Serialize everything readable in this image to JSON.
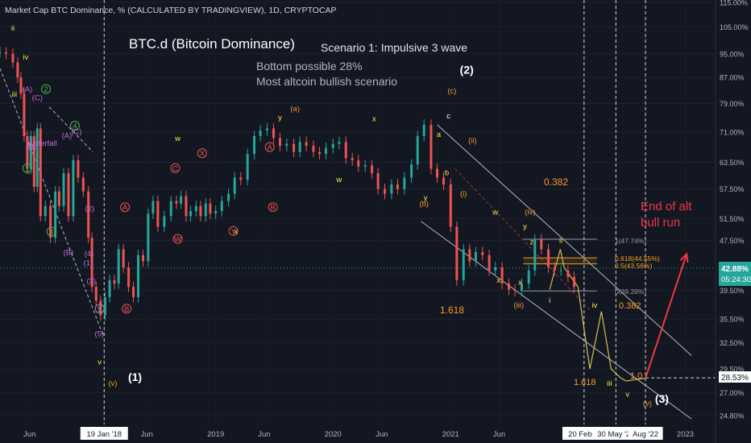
{
  "header": {
    "symbol": "Market Cap BTC Dominance, % (CALCULATED BY TRADINGVIEW), 1D, CRYPTOCAP"
  },
  "annotations": {
    "title": "BTC.d (Bitcoin Dominance)",
    "scenario": "Scenario 1: Impulsive 3 wave",
    "bottom_note": "Bottom possible 28%",
    "bullish_note": "Most altcoin bullish scenario",
    "end_note_1": "End of alt",
    "end_note_2": "bull run",
    "fib_0382_top": "0.382",
    "fib_1618_a": "1.618",
    "fib_1618_b": "1.618",
    "fib_0382_bottom": "0.382",
    "fib_10": "1.0"
  },
  "fib_levels": {
    "l1": "1(47.74%)",
    "l0618": "0.618(44.55%)",
    "l05": "0.5(43.56%)",
    "l0": "0(39.39%)"
  },
  "wave_labels": [
    {
      "t": "ii",
      "x": "2017-04-10",
      "y": 103.5,
      "c": "yellow"
    },
    {
      "t": "iv",
      "x": "2017-05-20",
      "y": 93.0,
      "c": "yellow"
    },
    {
      "t": "iii",
      "x": "2017-04-15",
      "y": 81.0,
      "c": "yellow"
    },
    {
      "t": "(A)",
      "x": "2017-05-25",
      "y": 82.5,
      "c": "purple"
    },
    {
      "t": "(C)",
      "x": "2017-06-25",
      "y": 80.0,
      "c": "purple"
    },
    {
      "t": "2",
      "x": "2017-07-22",
      "y": 82.5,
      "c": "green",
      "circle": true
    },
    {
      "t": "(B)",
      "x": "2017-06-05",
      "y": 66.5,
      "c": "purple"
    },
    {
      "t": "Waterfall",
      "x": "2017-07-10",
      "y": 67.5,
      "c": "purple"
    },
    {
      "t": "1",
      "x": "2017-05-25",
      "y": 61.5,
      "c": "green",
      "circle": true
    },
    {
      "t": "4",
      "x": "2017-10-20",
      "y": 72.0,
      "c": "green",
      "circle": true
    },
    {
      "t": "(A)",
      "x": "2017-09-25",
      "y": 69.5,
      "c": "purple"
    },
    {
      "t": "(C)",
      "x": "2017-10-25",
      "y": 70.5,
      "c": "purple"
    },
    {
      "t": "3",
      "x": "2017-08-08",
      "y": 48.6,
      "c": "green",
      "circle": true
    },
    {
      "t": "(B)",
      "x": "2017-09-30",
      "y": 45.0,
      "c": "purple"
    },
    {
      "t": "(2)",
      "x": "2017-12-05",
      "y": 53.0,
      "c": "purple"
    },
    {
      "t": "(4)",
      "x": "2017-12-03",
      "y": 44.8,
      "c": "purple"
    },
    {
      "t": "(1)",
      "x": "2017-11-30",
      "y": 43.3,
      "c": "purple"
    },
    {
      "t": "(3)",
      "x": "2017-12-10",
      "y": 40.5,
      "c": "purple"
    },
    {
      "t": "5",
      "x": "2018-01-05",
      "y": 36.5,
      "c": "gray",
      "circle": true
    },
    {
      "t": "(5)",
      "x": "2018-01-04",
      "y": 33.3,
      "c": "purple"
    },
    {
      "t": "v",
      "x": "2018-01-05",
      "y": 30.0,
      "c": "yellow"
    },
    {
      "t": "(v)",
      "x": "2018-02-15",
      "y": 27.7,
      "c": "orange"
    },
    {
      "t": "(1)",
      "x": "2018-04-25",
      "y": 28.2,
      "c": "white",
      "big": true
    },
    {
      "t": "A",
      "x": "2018-03-25",
      "y": 53.2,
      "c": "red",
      "circle": true
    },
    {
      "t": "B",
      "x": "2018-03-30",
      "y": 36.5,
      "c": "red",
      "circle": true
    },
    {
      "t": "C",
      "x": "2018-08-28",
      "y": 61.5,
      "c": "red",
      "circle": true
    },
    {
      "t": "W",
      "x": "2018-09-05",
      "y": 47.3,
      "c": "red",
      "circle": true
    },
    {
      "t": "w",
      "x": "2018-09-05",
      "y": 68.7,
      "c": "yellow"
    },
    {
      "t": "X",
      "x": "2018-11-20",
      "y": 65.0,
      "c": "red",
      "circle": true
    },
    {
      "t": "A",
      "x": "2019-06-18",
      "y": 66.5,
      "c": "red",
      "circle": true
    },
    {
      "t": "B",
      "x": "2019-06-28",
      "y": 53.2,
      "c": "red",
      "circle": true
    },
    {
      "t": "Y",
      "x": "2019-02-25",
      "y": 48.7,
      "c": "red",
      "circle": true
    },
    {
      "t": "x",
      "x": "2019-03-05",
      "y": 48.7,
      "c": "yellow"
    },
    {
      "t": "y",
      "x": "2019-07-20",
      "y": 74.3,
      "c": "yellow"
    },
    {
      "t": "(a)",
      "x": "2019-09-05",
      "y": 76.8,
      "c": "orange"
    },
    {
      "t": "x",
      "x": "2020-05-08",
      "y": 74.0,
      "c": "yellow"
    },
    {
      "t": "w",
      "x": "2020-01-20",
      "y": 59.0,
      "c": "yellow"
    },
    {
      "t": "y",
      "x": "2020-10-15",
      "y": 55.2,
      "c": "yellow"
    },
    {
      "t": "(b)",
      "x": "2020-10-10",
      "y": 54.0,
      "c": "orange"
    },
    {
      "t": "a",
      "x": "2020-11-25",
      "y": 69.8,
      "c": "yellow"
    },
    {
      "t": "c",
      "x": "2020-12-25",
      "y": 74.7,
      "c": "white"
    },
    {
      "t": "(c)",
      "x": "2021-01-05",
      "y": 82.0,
      "c": "orange"
    },
    {
      "t": "(2)",
      "x": "2021-02-20",
      "y": 88.2,
      "c": "white",
      "big": true
    },
    {
      "t": "b",
      "x": "2020-12-20",
      "y": 60.5,
      "c": "yellow"
    },
    {
      "t": "(ii)",
      "x": "2021-03-10",
      "y": 68.2,
      "c": "orange"
    },
    {
      "t": "(i)",
      "x": "2021-02-10",
      "y": 56.0,
      "c": "orange"
    },
    {
      "t": "w",
      "x": "2021-05-20",
      "y": 52.3,
      "c": "yellow"
    },
    {
      "t": "y",
      "x": "2021-08-20",
      "y": 49.6,
      "c": "yellow"
    },
    {
      "t": "(iv)",
      "x": "2021-09-05",
      "y": 52.3,
      "c": "orange"
    },
    {
      "t": "z",
      "x": "2021-09-10",
      "y": 46.8,
      "c": "yellow"
    },
    {
      "t": "ii",
      "x": "2021-12-10",
      "y": 47.1,
      "c": "yellow"
    },
    {
      "t": "x",
      "x": "2021-05-30",
      "y": 40.6,
      "c": "yellow"
    },
    {
      "t": "x",
      "x": "2021-08-05",
      "y": 40.3,
      "c": "yellow"
    },
    {
      "t": "i",
      "x": "2021-11-05",
      "y": 37.7,
      "c": "yellow"
    },
    {
      "t": "(iii)",
      "x": "2021-08-01",
      "y": 37.0,
      "c": "orange"
    },
    {
      "t": "iv",
      "x": "2022-03-25",
      "y": 37.0,
      "c": "yellow"
    },
    {
      "t": "iii",
      "x": "2022-05-10",
      "y": 27.7,
      "c": "yellow"
    },
    {
      "t": "v",
      "x": "2022-07-05",
      "y": 26.6,
      "c": "yellow"
    },
    {
      "t": "(v)",
      "x": "2022-09-05",
      "y": 25.7,
      "c": "orange"
    },
    {
      "t": "(3)",
      "x": "2022-10-20",
      "y": 26.0,
      "c": "white",
      "big": true
    }
  ],
  "price": {
    "current": "42.88%",
    "countdown": "05:24:30",
    "marker": "28.53%"
  },
  "colors": {
    "background": "#131722",
    "up": "#26a69a",
    "down": "#ef5350",
    "fib_orange": "#f7a21b",
    "fib_gray": "#9598a1",
    "yellow_path": "#cfc24e",
    "arrow": "#f23645",
    "text_white": "#ffffff",
    "label_yellow": "#ffeb3b",
    "label_orange": "#f59d26",
    "label_purple": "#c56cd3",
    "label_green": "#4caf50",
    "label_red": "#ef5350",
    "current_price_bg": "#26a69a"
  },
  "chart_data": {
    "type": "line",
    "title": "Market Cap BTC Dominance, % (CALCULATED BY TRADINGVIEW), 1D, CRYPTOCAP",
    "y_axis": {
      "scale": "log",
      "ticks": [
        115.0,
        105.0,
        95.0,
        87.0,
        79.0,
        71.0,
        63.5,
        57.5,
        51.5,
        47.5,
        42.0,
        39.5,
        35.5,
        32.5,
        29.5,
        27.0,
        24.8
      ],
      "tick_labels": [
        "115.00%",
        "105.00%",
        "95.00%",
        "87.00%",
        "79.00%",
        "71.00%",
        "63.50%",
        "57.50%",
        "51.50%",
        "47.50%",
        "42.00%",
        "39.50%",
        "35.50%",
        "32.50%",
        "29.50%",
        "27.00%",
        "24.80%"
      ],
      "range": [
        24.0,
        116.0
      ]
    },
    "x_axis": {
      "ticks": [
        "2017-06-01",
        "2018-01-19",
        "2018-06-01",
        "2019-01-01",
        "2019-06-01",
        "2020-01-01",
        "2020-06-01",
        "2021-01-01",
        "2021-06-01",
        "2022-02-20",
        "2022-05-30",
        "2022-08-30",
        "2023-01-01"
      ],
      "tick_labels": [
        "Jun",
        "19 Jan '18",
        "Jun",
        "2019",
        "Jun",
        "2020",
        "Jun",
        "2021",
        "Jun",
        "20 Feb '2",
        "30 May '22",
        "Aug '22",
        "2023"
      ],
      "highlighted": [
        "19 Jan '18",
        "20 Feb '2",
        "30 May '22",
        "Aug '22"
      ],
      "range": [
        "2017-03-01",
        "2023-04-05"
      ]
    },
    "series": [
      {
        "style": "candles",
        "x": [
          "2017-03-01",
          "2017-03-20",
          "2017-04-10",
          "2017-04-25",
          "2017-05-05",
          "2017-05-15",
          "2017-05-25",
          "2017-06-05",
          "2017-06-15",
          "2017-06-25",
          "2017-07-05",
          "2017-07-20",
          "2017-08-05",
          "2017-08-20",
          "2017-09-01",
          "2017-09-15",
          "2017-09-30",
          "2017-10-15",
          "2017-10-30",
          "2017-11-15",
          "2017-12-01",
          "2017-12-12",
          "2017-12-25",
          "2018-01-08",
          "2018-01-22",
          "2018-02-05",
          "2018-02-20",
          "2018-03-05",
          "2018-03-20",
          "2018-04-05",
          "2018-04-20",
          "2018-05-05",
          "2018-05-20",
          "2018-06-05",
          "2018-06-20",
          "2018-07-05",
          "2018-07-25",
          "2018-08-15",
          "2018-09-01",
          "2018-09-15",
          "2018-10-01",
          "2018-10-15",
          "2018-11-01",
          "2018-11-15",
          "2018-12-01",
          "2018-12-15",
          "2019-01-01",
          "2019-01-20",
          "2019-02-10",
          "2019-03-01",
          "2019-03-20",
          "2019-04-10",
          "2019-05-01",
          "2019-05-20",
          "2019-06-10",
          "2019-06-30",
          "2019-07-20",
          "2019-08-10",
          "2019-09-01",
          "2019-09-20",
          "2019-10-10",
          "2019-11-01",
          "2019-11-20",
          "2019-12-10",
          "2020-01-01",
          "2020-01-20",
          "2020-02-10",
          "2020-03-01",
          "2020-03-20",
          "2020-04-10",
          "2020-05-01",
          "2020-05-20",
          "2020-06-10",
          "2020-07-01",
          "2020-07-20",
          "2020-08-10",
          "2020-09-01",
          "2020-09-20",
          "2020-10-10",
          "2020-11-01",
          "2020-11-20",
          "2020-12-10",
          "2021-01-01",
          "2021-01-20",
          "2021-02-10",
          "2021-03-01",
          "2021-03-20",
          "2021-04-10",
          "2021-05-01",
          "2021-05-20",
          "2021-06-10",
          "2021-07-01",
          "2021-07-20",
          "2021-08-10",
          "2021-09-01",
          "2021-09-20",
          "2021-10-10",
          "2021-11-01",
          "2021-11-20",
          "2021-12-10",
          "2022-01-01",
          "2022-01-20"
        ],
        "y": [
          95.5,
          95.0,
          92.0,
          87.0,
          82.0,
          70.0,
          62.0,
          70.0,
          58.0,
          72.0,
          52.0,
          54.0,
          48.0,
          57.0,
          54.0,
          61.0,
          52.0,
          64.0,
          60.0,
          57.0,
          48.0,
          40.0,
          38.0,
          36.0,
          38.5,
          41.0,
          40.5,
          46.0,
          43.0,
          40.0,
          38.5,
          45.0,
          44.0,
          52.5,
          55.0,
          50.0,
          52.0,
          55.0,
          54.5,
          56.0,
          52.0,
          53.0,
          54.0,
          52.0,
          54.5,
          52.5,
          53.0,
          55.0,
          56.5,
          60.0,
          59.5,
          65.5,
          70.0,
          71.5,
          72.0,
          69.5,
          67.5,
          68.0,
          66.0,
          68.5,
          67.5,
          66.0,
          65.5,
          67.0,
          68.0,
          68.5,
          64.5,
          64.0,
          62.5,
          62.8,
          61.0,
          57.5,
          56.5,
          58.5,
          57.5,
          60.0,
          63.0,
          70.0,
          73.0,
          62.0,
          60.0,
          58.5,
          50.0,
          41.0,
          46.0,
          44.0,
          45.5,
          45.0,
          42.5,
          43.0,
          40.5,
          39.6,
          39.4,
          40.5,
          42.5,
          47.7,
          46.0,
          43.0,
          42.5,
          42.5,
          41.5,
          40.0
        ]
      },
      {
        "name": "projection",
        "style": "line",
        "x": [
          "2021-11-05",
          "2021-12-08",
          "2021-12-20",
          "2022-02-01",
          "2022-03-10",
          "2022-04-15",
          "2022-05-15",
          "2022-06-15",
          "2022-07-01",
          "2022-08-30"
        ],
        "y": [
          39.6,
          46.0,
          43.0,
          40.0,
          29.5,
          36.5,
          29.5,
          28.5,
          28.2,
          28.5
        ]
      },
      {
        "name": "arrow",
        "style": "arrow",
        "x": [
          "2022-08-30",
          "2023-01-05"
        ],
        "y": [
          28.5,
          45.2
        ]
      }
    ],
    "channels": [
      {
        "x": [
          "2020-11-20",
          "2023-01-20"
        ],
        "y": [
          73.0,
          31.0
        ],
        "color": "white"
      },
      {
        "x": [
          "2020-10-01",
          "2023-01-20"
        ],
        "y": [
          51.0,
          24.5
        ],
        "color": "white"
      },
      {
        "x": [
          "2017-03-01",
          "2018-01-15"
        ],
        "y": [
          90.0,
          33.5
        ],
        "color": "white",
        "dashed": true
      },
      {
        "x": [
          "2017-08-01",
          "2017-12-15"
        ],
        "y": [
          78.0,
          66.0
        ],
        "color": "white",
        "dashed": true
      },
      {
        "x": [
          "2021-01-15",
          "2022-03-15"
        ],
        "y": [
          62.0,
          36.5
        ],
        "color": "red",
        "dashed": true
      }
    ],
    "fib_lines": [
      {
        "x": [
          "2021-08-15",
          "2022-04-01"
        ],
        "y": 47.74,
        "color": "gray"
      },
      {
        "x": [
          "2021-08-15",
          "2022-04-01"
        ],
        "y": 44.55,
        "color": "orange"
      },
      {
        "x": [
          "2021-08-15",
          "2022-04-01"
        ],
        "y": 43.56,
        "color": "orange"
      },
      {
        "x": [
          "2021-08-15",
          "2022-04-01"
        ],
        "y": 39.39,
        "color": "gray"
      }
    ],
    "hlines": [
      {
        "y": 42.88,
        "color": "teal",
        "style": "dotted"
      },
      {
        "y": 28.53,
        "color": "white",
        "style": "dashed",
        "x_from": "2022-08-30"
      }
    ],
    "vlines": [
      "2018-01-19",
      "2022-02-20",
      "2022-05-30",
      "2022-08-30"
    ]
  }
}
